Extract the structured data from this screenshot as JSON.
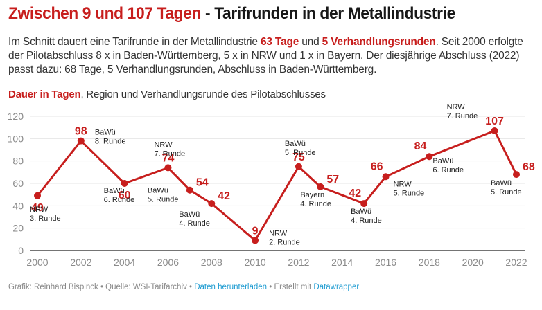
{
  "header": {
    "title_highlight": "Zwischen 9 und 107 Tagen",
    "title_rest": " - Tarifrunden in der Metallindustrie",
    "desc_part1": "Im Schnitt dauert eine Tarifrunde in der Metallindustrie ",
    "desc_hl1": "63 Tage",
    "desc_part2": " und ",
    "desc_hl2": "5 Verhandlungsrunden",
    "desc_part3": ". Seit 2000 erfolgte der Pilotabschluss 8 x in Baden-Württemberg, 5 x in NRW und 1 x in Bayern. Der diesjährige Abschluss (2022) passt dazu: 68 Tage, 5 Verhandlungsrunden, Abschluss in Baden-Württemberg.",
    "subtitle_hl": "Dauer in Tagen",
    "subtitle_rest": ", Region und Verhandlungsrunde des Pilotabschlusses"
  },
  "footer": {
    "credit": "Grafik: Reinhard Bispinck",
    "sep": " • ",
    "source": "Quelle: WSI-Tarifarchiv",
    "download_link": "Daten herunterladen",
    "made_with": "Erstellt mit ",
    "tool_link": "Datawrapper"
  },
  "colors": {
    "accent": "#c71e1d",
    "grid": "#e6e6e6",
    "axis": "#222222",
    "tick": "#8a8a8a",
    "link": "#1d9bd1"
  },
  "chart_data": {
    "type": "line",
    "title": "Zwischen 9 und 107 Tagen - Tarifrunden in der Metallindustrie",
    "ylabel": "Dauer in Tagen",
    "xlabel": "",
    "ylim": [
      0,
      120
    ],
    "yticks": [
      0,
      20,
      40,
      60,
      80,
      100,
      120
    ],
    "xlim": [
      2000,
      2022
    ],
    "xticks": [
      2000,
      2002,
      2004,
      2006,
      2008,
      2010,
      2012,
      2014,
      2016,
      2018,
      2020,
      2022
    ],
    "grid": true,
    "series": [
      {
        "name": "Dauer in Tagen",
        "points": [
          {
            "x": 2000,
            "y": 49,
            "region": "NRW",
            "runde": "3. Runde",
            "label_pos": "below",
            "note_pos": "below"
          },
          {
            "x": 2002,
            "y": 98,
            "region": "BaWü",
            "runde": "8. Runde",
            "label_pos": "above",
            "note_pos": "right"
          },
          {
            "x": 2004,
            "y": 60,
            "region": "BaWü",
            "runde": "6. Runde",
            "label_pos": "below",
            "note_pos": "below"
          },
          {
            "x": 2006,
            "y": 74,
            "region": "NRW",
            "runde": "7. Runde",
            "label_pos": "above",
            "note_pos": "above"
          },
          {
            "x": 2007,
            "y": 54,
            "region": "BaWü",
            "runde": "5. Runde",
            "label_pos": "above-right",
            "note_pos": "left-below"
          },
          {
            "x": 2008,
            "y": 42,
            "region": "BaWü",
            "runde": "4. Runde",
            "label_pos": "above-right",
            "note_pos": "left-below"
          },
          {
            "x": 2010,
            "y": 9,
            "region": "NRW",
            "runde": "2. Runde",
            "label_pos": "above",
            "note_pos": "right"
          },
          {
            "x": 2012,
            "y": 75,
            "region": "BaWü",
            "runde": "5. Runde",
            "label_pos": "above",
            "note_pos": "above"
          },
          {
            "x": 2013,
            "y": 57,
            "region": "Bayern",
            "runde": "4. Runde",
            "label_pos": "above-right",
            "note_pos": "below"
          },
          {
            "x": 2015,
            "y": 42,
            "region": "BaWü",
            "runde": "4. Runde",
            "label_pos": "above-left",
            "note_pos": "below"
          },
          {
            "x": 2016,
            "y": 66,
            "region": "NRW",
            "runde": "5. Runde",
            "label_pos": "above-left",
            "note_pos": "right"
          },
          {
            "x": 2018,
            "y": 84,
            "region": "BaWü",
            "runde": "6. Runde",
            "label_pos": "above-left",
            "note_pos": "right"
          },
          {
            "x": 2021,
            "y": 107,
            "region": "NRW",
            "runde": "7. Runde",
            "label_pos": "above",
            "note_pos": "left"
          },
          {
            "x": 2022,
            "y": 68,
            "region": "BaWü",
            "runde": "5. Runde",
            "label_pos": "above-right",
            "note_pos": "below"
          }
        ]
      }
    ]
  }
}
